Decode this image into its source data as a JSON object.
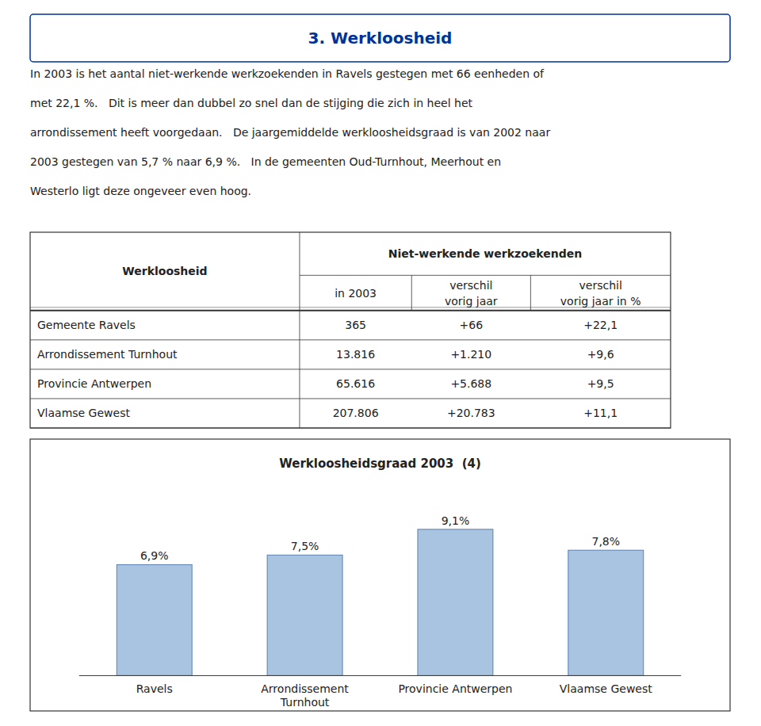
{
  "page": {
    "title": "3. Werkloosheid",
    "title_color": "#003399",
    "paragraph_lines": [
      "In 2003 is het aantal niet-werkende werkzoekenden in Ravels gestegen met 66 eenheden of",
      "met 22,1 %.   Dit is meer dan dubbel zo snel dan de stijging die zich in heel het",
      "arrondissement heeft voorgedaan.   De jaargemiddelde werkloosheidsgraad is van 2002 naar",
      "2003 gestegen van 5,7 % naar 6,9 %.   In de gemeenten Oud-Turnhout, Meerhout en",
      "Westerlo ligt deze ongeveer even hoog."
    ],
    "table": {
      "header_main": "Niet-werkende werkzoekenden",
      "col0_header": "Werkloosheid",
      "col1_header": "in 2003",
      "col2_header": [
        "verschil",
        "vorig jaar"
      ],
      "col3_header": [
        "verschil",
        "vorig jaar in %"
      ],
      "rows": [
        [
          "Gemeente Ravels",
          "365",
          "+66",
          "+22,1"
        ],
        [
          "Arrondissement Turnhout",
          "13.816",
          "+1.210",
          "+9,6"
        ],
        [
          "Provincie Antwerpen",
          "65.616",
          "+5.688",
          "+9,5"
        ],
        [
          "Vlaamse Gewest",
          "207.806",
          "+20.783",
          "+11,1"
        ]
      ]
    }
  },
  "chart_data": {
    "type": "bar",
    "title": "Werkloosheidsgraad 2003  (4)",
    "categories": [
      "Ravels",
      "Arrondissement\nTurnhout",
      "Provincie Antwerpen",
      "Vlaamse Gewest"
    ],
    "values": [
      6.9,
      7.5,
      9.1,
      7.8
    ],
    "value_labels": [
      "6,9%",
      "7,5%",
      "9,1%",
      "7,8%"
    ],
    "data_labels": true,
    "color": "#a8c4e0",
    "ylim": [
      0,
      11.5
    ],
    "tick_labels": "x",
    "grid": false
  }
}
